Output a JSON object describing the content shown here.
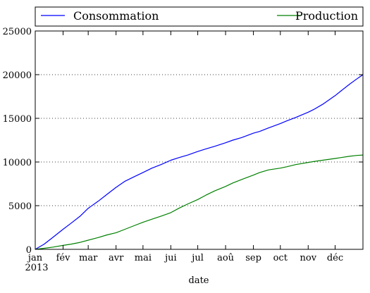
{
  "chart_data": {
    "type": "line",
    "xlabel": "date",
    "ylabel": "",
    "x_axis": {
      "range": [
        0,
        365
      ],
      "ticks": [
        {
          "label": "jan",
          "day": 0,
          "sublabel": "2013"
        },
        {
          "label": "fév",
          "day": 31
        },
        {
          "label": "mar",
          "day": 59
        },
        {
          "label": "avr",
          "day": 90
        },
        {
          "label": "mai",
          "day": 120
        },
        {
          "label": "jui",
          "day": 151
        },
        {
          "label": "jul",
          "day": 181
        },
        {
          "label": "aoû",
          "day": 212
        },
        {
          "label": "sep",
          "day": 243
        },
        {
          "label": "oct",
          "day": 273
        },
        {
          "label": "nov",
          "day": 304
        },
        {
          "label": "déc",
          "day": 334
        }
      ]
    },
    "y_axis": {
      "range": [
        0,
        25000
      ],
      "ticks": [
        0,
        5000,
        10000,
        15000,
        20000,
        25000
      ]
    },
    "grid": "horizontal-dotted",
    "legend": {
      "placement": "top",
      "entries": [
        "Consommation",
        "Production"
      ]
    },
    "series": [
      {
        "name": "Consommation",
        "color": "#0000ff",
        "x": [
          0,
          10,
          20,
          31,
          40,
          50,
          59,
          70,
          80,
          90,
          100,
          110,
          120,
          130,
          140,
          151,
          160,
          170,
          181,
          190,
          200,
          212,
          220,
          230,
          243,
          250,
          260,
          273,
          280,
          290,
          304,
          310,
          320,
          334,
          340,
          350,
          358,
          365
        ],
        "y": [
          0,
          600,
          1400,
          2300,
          3000,
          3800,
          4700,
          5500,
          6300,
          7100,
          7800,
          8300,
          8800,
          9300,
          9700,
          10200,
          10500,
          10800,
          11200,
          11500,
          11800,
          12200,
          12500,
          12800,
          13300,
          13500,
          13900,
          14400,
          14700,
          15100,
          15700,
          16000,
          16600,
          17600,
          18100,
          18900,
          19500,
          20000
        ]
      },
      {
        "name": "Production",
        "color": "#008000",
        "x": [
          0,
          10,
          20,
          31,
          40,
          50,
          59,
          70,
          80,
          90,
          100,
          110,
          120,
          130,
          140,
          151,
          160,
          170,
          181,
          190,
          200,
          212,
          220,
          230,
          243,
          250,
          260,
          273,
          280,
          290,
          304,
          310,
          320,
          334,
          340,
          350,
          358,
          365
        ],
        "y": [
          0,
          120,
          260,
          450,
          600,
          800,
          1050,
          1350,
          1650,
          1900,
          2300,
          2700,
          3100,
          3450,
          3800,
          4200,
          4700,
          5200,
          5700,
          6200,
          6700,
          7200,
          7600,
          8000,
          8500,
          8800,
          9100,
          9300,
          9450,
          9700,
          9950,
          10050,
          10200,
          10400,
          10500,
          10650,
          10750,
          10800
        ]
      }
    ]
  }
}
